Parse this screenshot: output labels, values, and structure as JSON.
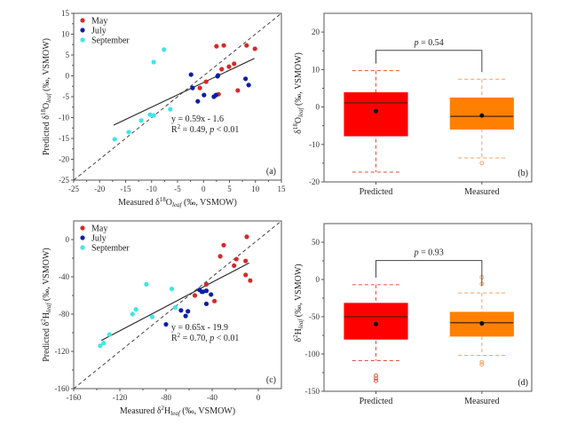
{
  "colors": {
    "may": "#d42a2a",
    "july": "#0a1fa8",
    "september": "#3ee6e6",
    "box_predicted": "#ff0000",
    "box_measured": "#ff8000",
    "whisker_predicted": "#d9533b",
    "whisker_measured": "#f0a060",
    "axis": "#555555"
  },
  "chart_data": [
    {
      "panel": "a",
      "type": "scatter",
      "panel_label": "(a)",
      "xlabel": "Measured δ18Oleaf (‰, VSMOW)",
      "xlabel_parts": {
        "pre": "Measured δ",
        "sup": "18",
        "mid": "O",
        "sub": "leaf",
        "post": " (‰, VSMOW)"
      },
      "ylabel_parts": {
        "pre": "Predicted δ",
        "sup": "18",
        "mid": "O",
        "sub": "leaf",
        "post": " (‰, VSMOW)"
      },
      "xlim": [
        -25,
        15
      ],
      "ylim": [
        -25,
        15
      ],
      "xticks": [
        -25,
        -20,
        -15,
        -10,
        -5,
        0,
        5,
        10,
        15
      ],
      "yticks": [
        -25,
        -20,
        -15,
        -10,
        -5,
        0,
        5,
        10,
        15
      ],
      "legend": [
        "May",
        "July",
        "September"
      ],
      "legend_position": "top-left",
      "one_to_one_line": true,
      "fit": {
        "slope": 0.59,
        "intercept": -1.6,
        "x_range": [
          -17.3,
          9.8
        ]
      },
      "equation": "y = 0.59x - 1.6",
      "stats_parts": {
        "pre": "R",
        "sup": "2",
        "post": " = 0.49, ",
        "p": "p",
        "tail": " < 0.01"
      },
      "series": [
        {
          "name": "May",
          "points": [
            [
              2.5,
              7.1
            ],
            [
              3.9,
              7.3
            ],
            [
              8.3,
              7.3
            ],
            [
              9.9,
              6.5
            ],
            [
              5.9,
              2.9
            ],
            [
              4.9,
              2.2
            ],
            [
              3.5,
              1.6
            ],
            [
              0.5,
              -1.4
            ],
            [
              -0.7,
              -2.9
            ],
            [
              2.9,
              -4.4
            ],
            [
              6.6,
              -3.5
            ]
          ]
        },
        {
          "name": "July",
          "points": [
            [
              -2.4,
              0.3
            ],
            [
              -2.1,
              -2.9
            ],
            [
              2.7,
              -0.1
            ],
            [
              2.8,
              0.1
            ],
            [
              0.1,
              -4.6
            ],
            [
              -1.1,
              -6.1
            ],
            [
              2.0,
              -5.0
            ],
            [
              2.4,
              -4.6
            ],
            [
              8.1,
              -0.7
            ],
            [
              8.7,
              -2.2
            ]
          ]
        },
        {
          "name": "September",
          "points": [
            [
              -7.6,
              6.3
            ],
            [
              -9.6,
              3.3
            ],
            [
              -6.4,
              -8.0
            ],
            [
              -10.3,
              -9.3
            ],
            [
              -9.6,
              -9.5
            ],
            [
              -12.0,
              -10.7
            ],
            [
              -14.4,
              -13.5
            ],
            [
              -17.1,
              -15.2
            ]
          ]
        }
      ]
    },
    {
      "panel": "b",
      "type": "box",
      "panel_label": "(b)",
      "ylabel_parts": {
        "pre": "δ",
        "sup": "18",
        "mid": "O",
        "sub": "leaf",
        "post": " (‰, VSMOW)"
      },
      "ylim": [
        -20,
        25
      ],
      "yticks": [
        -20,
        -10,
        0,
        10,
        20
      ],
      "categories": [
        "Predicted",
        "Measured"
      ],
      "significance": {
        "p": "p",
        "text": " = 0.54"
      },
      "boxes": [
        {
          "name": "Predicted",
          "q1": -7.7,
          "q3": 3.8,
          "median": 1.1,
          "mean": -1.1,
          "whisker_low": -17.4,
          "whisker_high": 9.7,
          "outliers": []
        },
        {
          "name": "Measured",
          "q1": -5.9,
          "q3": 2.4,
          "median": -2.5,
          "mean": -2.3,
          "whisker_low": -13.6,
          "whisker_high": 7.4,
          "outliers": [
            -15.0
          ]
        }
      ]
    },
    {
      "panel": "c",
      "type": "scatter",
      "panel_label": "(c)",
      "xlabel_parts": {
        "pre": "Measured δ",
        "sup": "2",
        "mid": "H",
        "sub": "leaf",
        "post": " (‰, VSMOW)"
      },
      "ylabel_parts": {
        "pre": "Predicted δ",
        "sup": "2",
        "mid": "H",
        "sub": "leaf",
        "post": " (‰, VSMOW)"
      },
      "xlim": [
        -160,
        20
      ],
      "ylim": [
        -160,
        20
      ],
      "xticks": [
        -160,
        -120,
        -80,
        -40,
        0
      ],
      "yticks": [
        -160,
        -120,
        -80,
        -40,
        0
      ],
      "legend": [
        "May",
        "July",
        "September"
      ],
      "legend_position": "top-left",
      "one_to_one_line": true,
      "fit": {
        "slope": 0.65,
        "intercept": -19.9,
        "x_range": [
          -136,
          -8
        ]
      },
      "equation": "y = 0.65x - 19.9",
      "stats_parts": {
        "pre": "R",
        "sup": "2",
        "post": " = 0.70, ",
        "p": "p",
        "tail": " < 0.01"
      },
      "series": [
        {
          "name": "May",
          "points": [
            [
              -10,
              3
            ],
            [
              -30,
              -6
            ],
            [
              -33,
              -18
            ],
            [
              -19,
              -21
            ],
            [
              -11,
              -23
            ],
            [
              -21,
              -28
            ],
            [
              -11,
              -38
            ],
            [
              -7,
              -44
            ],
            [
              -45,
              -48
            ],
            [
              -55,
              -60
            ],
            [
              -38,
              -66
            ]
          ]
        },
        {
          "name": "July",
          "points": [
            [
              -51,
              -54
            ],
            [
              -49,
              -56
            ],
            [
              -48,
              -56
            ],
            [
              -45,
              -55
            ],
            [
              -41,
              -59
            ],
            [
              -45,
              -69
            ],
            [
              -67,
              -76
            ],
            [
              -61,
              -77
            ],
            [
              -63,
              -82
            ],
            [
              -80,
              -91
            ]
          ]
        },
        {
          "name": "September",
          "points": [
            [
              -97,
              -48
            ],
            [
              -75,
              -53
            ],
            [
              -72,
              -73
            ],
            [
              -106,
              -75
            ],
            [
              -109,
              -80
            ],
            [
              -92,
              -83
            ],
            [
              -129,
              -102
            ],
            [
              -134,
              -111
            ],
            [
              -137,
              -114
            ]
          ]
        }
      ]
    },
    {
      "panel": "d",
      "type": "box",
      "panel_label": "(d)",
      "ylabel_parts": {
        "pre": "δ",
        "sup": "2",
        "mid": "H",
        "sub": "leaf",
        "post": " (‰, VSMOW)"
      },
      "ylim": [
        -150,
        75
      ],
      "yticks": [
        -150,
        -100,
        -50,
        0,
        50
      ],
      "categories": [
        "Predicted",
        "Measured"
      ],
      "significance": {
        "p": "p",
        "text": " = 0.93"
      },
      "boxes": [
        {
          "name": "Predicted",
          "q1": -80,
          "q3": -32,
          "median": -50,
          "mean": -60,
          "whisker_low": -109,
          "whisker_high": -7,
          "outliers": [
            -129,
            -133,
            -136
          ]
        },
        {
          "name": "Measured",
          "q1": -76,
          "q3": -44,
          "median": -58,
          "mean": -59,
          "whisker_low": -102,
          "whisker_high": -18,
          "outliers": [
            3,
            -6,
            -111,
            -114
          ]
        }
      ]
    }
  ]
}
